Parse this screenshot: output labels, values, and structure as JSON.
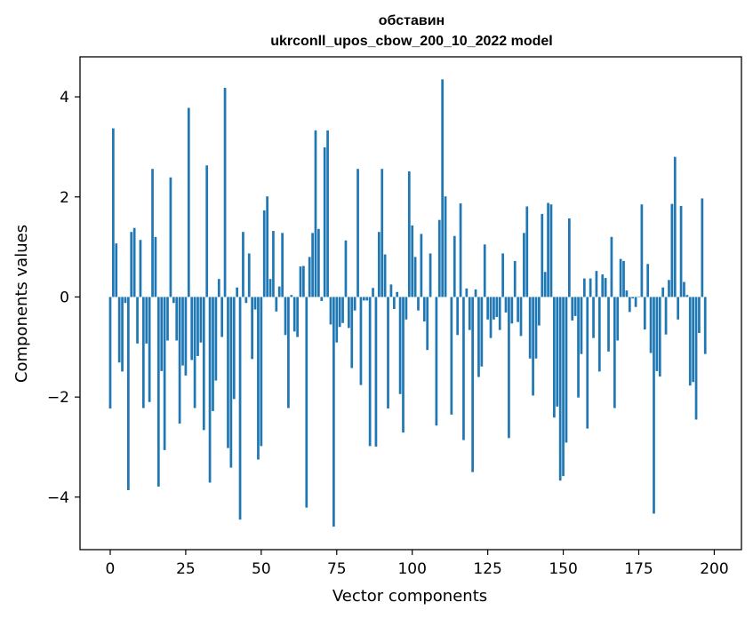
{
  "chart_data": {
    "type": "bar",
    "title_line1": "обставин",
    "title_line2": "ukrconll_upos_cbow_200_10_2022 model",
    "xlabel": "Vector components",
    "ylabel": "Components values",
    "xlim": [
      -10,
      209
    ],
    "ylim": [
      -5.05,
      4.8
    ],
    "xticks": [
      0,
      25,
      50,
      75,
      100,
      125,
      150,
      175,
      200
    ],
    "yticks": [
      -4,
      -2,
      0,
      2,
      4
    ],
    "ytick_labels": [
      "−4",
      "−2",
      "0",
      "2",
      "4"
    ],
    "color": "#1f77b4",
    "values": [
      -2.23,
      3.37,
      1.07,
      -1.31,
      -1.49,
      -0.12,
      -3.86,
      1.3,
      1.38,
      -0.93,
      1.14,
      -2.22,
      -0.93,
      -2.1,
      2.56,
      1.2,
      -3.79,
      -1.48,
      -3.06,
      -0.87,
      2.39,
      -0.12,
      -0.87,
      -2.53,
      -1.37,
      -1.57,
      3.78,
      -1.26,
      -2.22,
      -1.18,
      -0.91,
      -2.66,
      2.63,
      -3.71,
      -2.28,
      -1.67,
      0.36,
      -0.8,
      4.18,
      -3.02,
      -3.41,
      -2.04,
      0.19,
      -4.45,
      1.3,
      -0.12,
      0.87,
      -1.24,
      -0.25,
      -3.25,
      -2.98,
      1.73,
      2.01,
      0.36,
      1.32,
      -0.29,
      0.21,
      1.28,
      -0.76,
      -2.22,
      0.04,
      -0.69,
      -0.8,
      0.61,
      0.62,
      -4.21,
      0.8,
      1.28,
      3.33,
      1.36,
      -0.08,
      2.99,
      3.33,
      -0.55,
      -4.59,
      -0.91,
      -0.6,
      -0.52,
      1.13,
      -0.62,
      -1.42,
      -0.27,
      2.56,
      -1.76,
      -0.07,
      -0.07,
      -2.98,
      0.18,
      -2.99,
      1.3,
      2.56,
      0.85,
      -2.23,
      0.25,
      -0.24,
      0.1,
      -1.94,
      -2.71,
      -0.45,
      2.51,
      1.43,
      0.8,
      -0.27,
      1.26,
      -0.49,
      -1.06,
      0.87,
      0.0,
      -2.57,
      1.54,
      4.35,
      2.01,
      0.0,
      -2.35,
      1.22,
      -0.76,
      1.87,
      -2.86,
      0.17,
      -0.66,
      -3.5,
      0.15,
      -1.6,
      -1.39,
      1.05,
      -0.45,
      -0.82,
      -0.45,
      -0.4,
      -0.66,
      0.87,
      -0.31,
      -2.82,
      -0.53,
      0.72,
      -0.5,
      -0.78,
      1.28,
      1.81,
      -1.23,
      -1.97,
      -1.23,
      -0.57,
      1.66,
      0.5,
      1.88,
      1.85,
      -2.41,
      -2.19,
      -3.67,
      -3.58,
      -2.91,
      1.57,
      -0.47,
      -0.38,
      -2.01,
      -1.14,
      0.37,
      -2.63,
      0.37,
      -0.82,
      0.52,
      -1.49,
      0.45,
      0.38,
      -1.09,
      1.2,
      -2.22,
      -0.87,
      0.76,
      0.72,
      0.13,
      -0.3,
      -0.03,
      -0.2,
      0.01,
      1.85,
      -0.65,
      0.66,
      -1.12,
      -4.33,
      -1.48,
      -1.59,
      0.19,
      -0.75,
      0.34,
      1.86,
      2.8,
      -0.45,
      1.82,
      0.3,
      0.04,
      -1.77,
      -1.7,
      -2.45,
      -0.72,
      1.97,
      -1.14
    ]
  }
}
